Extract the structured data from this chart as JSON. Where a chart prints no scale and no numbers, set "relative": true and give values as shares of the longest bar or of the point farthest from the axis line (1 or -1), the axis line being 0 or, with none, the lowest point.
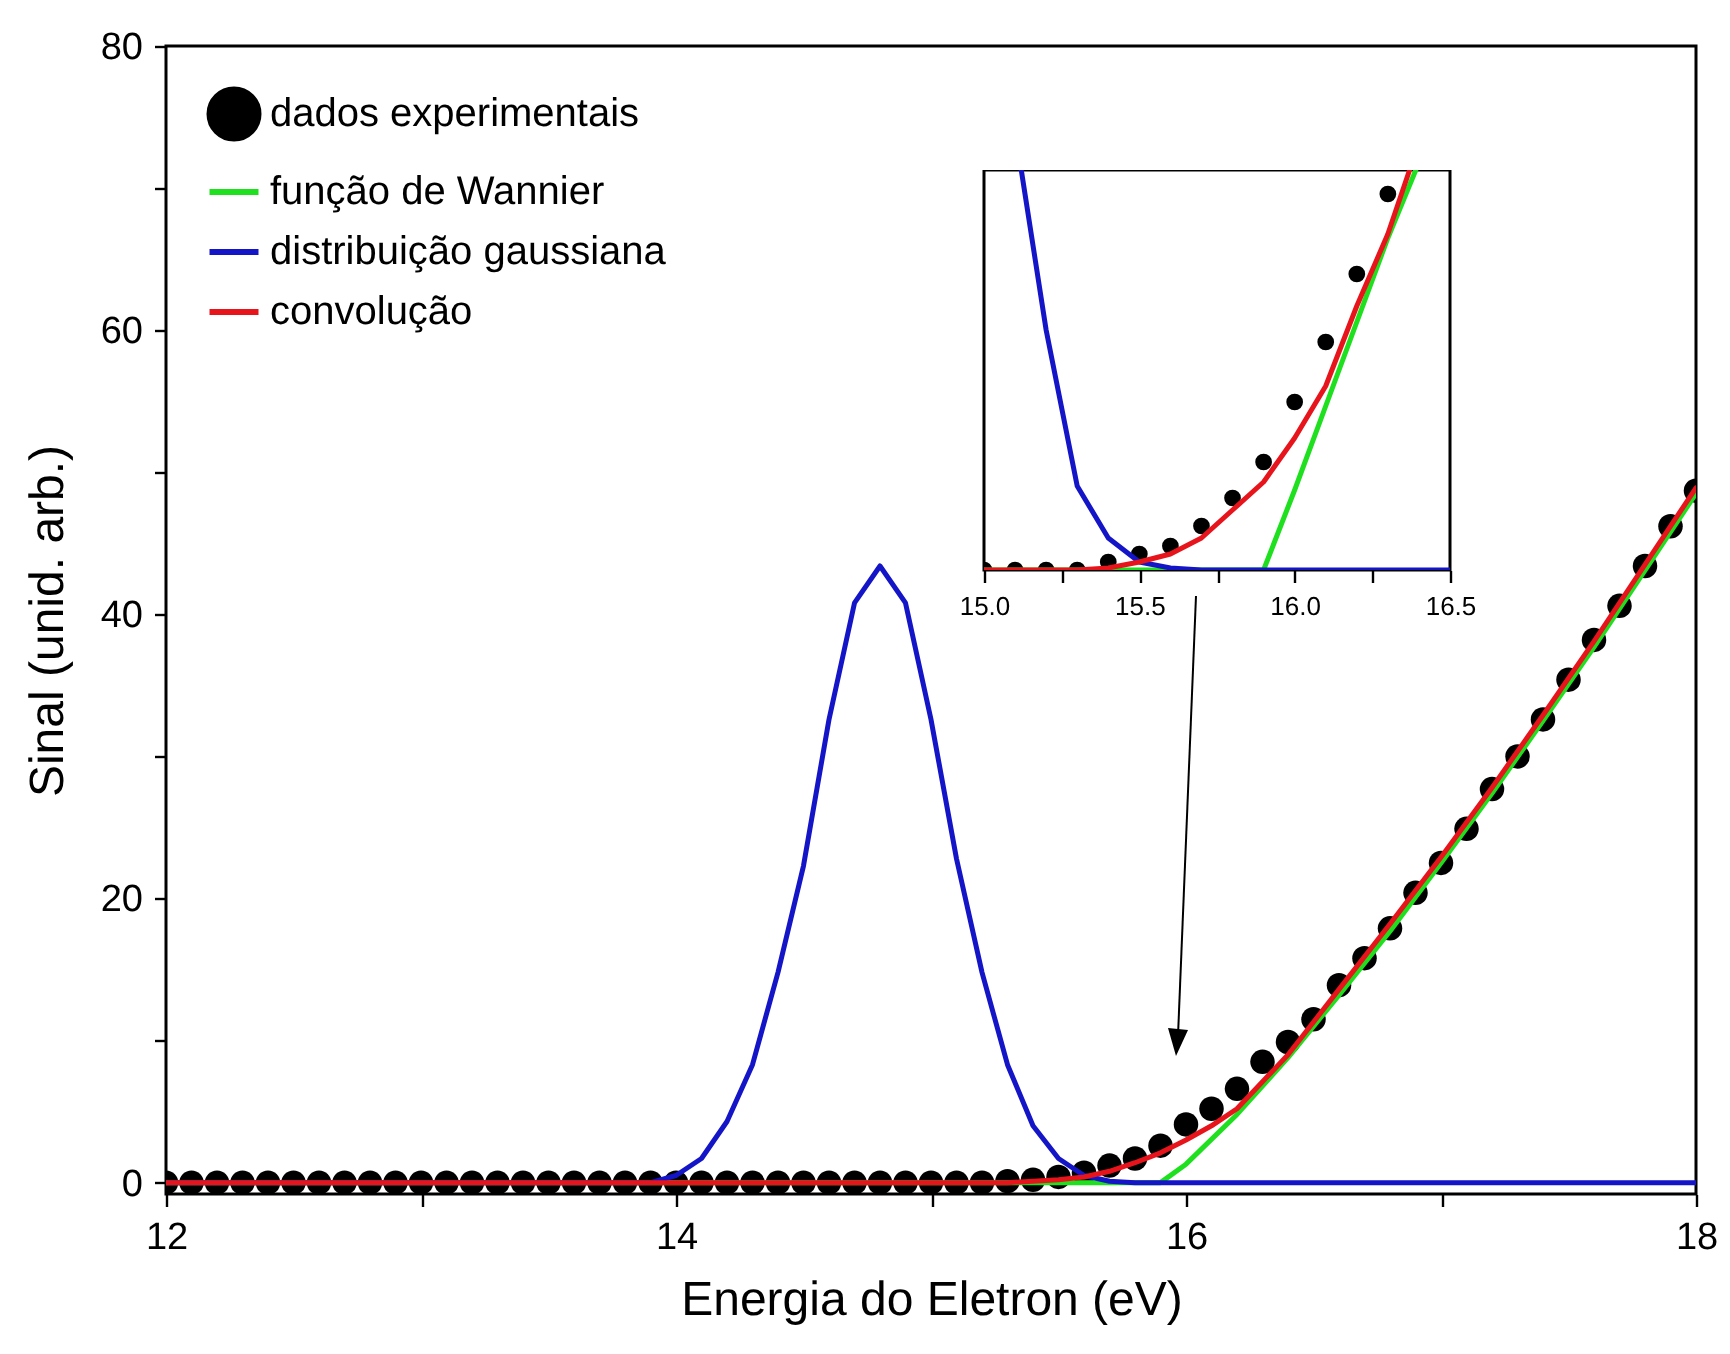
{
  "chart_data": [
    {
      "type": "line",
      "xlabel": "Energia do Eletron (eV)",
      "ylabel": "Sinal (unid. arb.)",
      "xlim": [
        12,
        18
      ],
      "ylim": [
        -0.8,
        80
      ],
      "xticks": [
        12,
        {
          "value": 13,
          "label": null
        },
        14,
        {
          "value": 15,
          "label": null
        },
        16,
        {
          "value": 17,
          "label": null
        },
        18
      ],
      "yticks": [
        0,
        {
          "value": 10,
          "label": null
        },
        20,
        {
          "value": 30,
          "label": null
        },
        40,
        {
          "value": 50,
          "label": null
        },
        60,
        {
          "value": 70,
          "label": null
        },
        80
      ],
      "grid": false,
      "legend": "top left",
      "series": [
        {
          "name": "dados experimentais",
          "type": "scatter",
          "marker": "circle",
          "color": "#000000",
          "x": [
            12.0,
            12.1,
            12.2,
            12.3,
            12.4,
            12.5,
            12.6,
            12.7,
            12.8,
            12.9,
            13.0,
            13.1,
            13.2,
            13.3,
            13.4,
            13.5,
            13.6,
            13.7,
            13.8,
            13.9,
            14.0,
            14.1,
            14.2,
            14.3,
            14.4,
            14.5,
            14.6,
            14.7,
            14.8,
            14.9,
            15.0,
            15.1,
            15.2,
            15.3,
            15.4,
            15.5,
            15.6,
            15.7,
            15.8,
            15.9,
            16.0,
            16.1,
            16.2,
            16.3,
            16.4,
            16.5,
            16.6,
            16.7,
            16.8,
            16.9,
            17.0,
            17.1,
            17.2,
            17.3,
            17.4,
            17.5,
            17.6,
            17.7,
            17.8,
            17.9,
            18.0
          ],
          "values": [
            0,
            0,
            0,
            0,
            0,
            0,
            0,
            0,
            0,
            0,
            0,
            0,
            0,
            0,
            0,
            0,
            0,
            0,
            0,
            0,
            0,
            0,
            0,
            0,
            0,
            0,
            0,
            0,
            0,
            0,
            0,
            0,
            0,
            0.1,
            0.2,
            0.4,
            0.7,
            1.2,
            1.7,
            2.6,
            4.1,
            5.2,
            6.6,
            8.5,
            9.9,
            11.5,
            13.9,
            15.8,
            17.9,
            20.4,
            22.5,
            24.9,
            27.7,
            30.0,
            32.6,
            35.4,
            38.2,
            40.6,
            43.4,
            46.2,
            48.7
          ]
        },
        {
          "name": "função de Wannier",
          "color": "#1fe01f",
          "x": [
            12,
            15.9,
            16.0,
            16.2,
            16.4,
            16.6,
            16.8,
            17.0,
            17.2,
            17.4,
            17.6,
            17.8,
            18.0
          ],
          "values": [
            0,
            0,
            1.3,
            4.8,
            8.8,
            13.2,
            17.7,
            22.5,
            27.4,
            32.5,
            37.7,
            43.1,
            48.5
          ]
        },
        {
          "name": "distribuição gaussiana",
          "color": "#1515c8",
          "x": [
            12,
            13.9,
            14.0,
            14.1,
            14.2,
            14.3,
            14.4,
            14.5,
            14.6,
            14.7,
            14.8,
            14.9,
            15.0,
            15.1,
            15.2,
            15.3,
            15.4,
            15.5,
            15.6,
            15.7,
            15.8,
            18
          ],
          "values": [
            0,
            0,
            0.5,
            1.7,
            4.3,
            8.3,
            14.8,
            22.3,
            32.6,
            40.8,
            43.4,
            40.8,
            32.6,
            22.8,
            14.8,
            8.3,
            4.0,
            1.7,
            0.5,
            0.1,
            0,
            0
          ]
        },
        {
          "name": "convolução",
          "color": "#e8141c",
          "x": [
            12,
            15.3,
            15.5,
            15.6,
            15.7,
            15.8,
            15.9,
            16.0,
            16.1,
            16.2,
            16.4,
            16.6,
            16.8,
            17.0,
            17.2,
            17.4,
            17.6,
            17.8,
            18.0
          ],
          "values": [
            0,
            0,
            0.2,
            0.4,
            0.8,
            1.4,
            2.1,
            3.0,
            4.0,
            5.2,
            9.0,
            13.6,
            18.2,
            22.9,
            27.8,
            32.9,
            38.1,
            43.5,
            48.9
          ]
        }
      ]
    },
    {
      "type": "line",
      "relative": true,
      "tick_labels": "x",
      "xlim": [
        15,
        16.5
      ],
      "xticks": [
        {
          "value": 15,
          "label": "15.0"
        },
        {
          "value": 15.25,
          "label": null
        },
        15.5,
        {
          "value": 15.75,
          "label": null
        },
        {
          "value": 16,
          "label": "16.0"
        },
        {
          "value": 16.25,
          "label": null
        },
        16.5
      ],
      "grid": false,
      "series": [
        {
          "type": "scatter",
          "marker": "circle",
          "color": "#000000",
          "x": [
            15.0,
            15.1,
            15.2,
            15.3,
            15.4,
            15.5,
            15.6,
            15.7,
            15.8,
            15.9,
            16.0,
            16.1,
            16.2,
            16.3
          ],
          "values": [
            0,
            0,
            0,
            0,
            0.02,
            0.04,
            0.06,
            0.11,
            0.18,
            0.27,
            0.42,
            0.57,
            0.74,
            0.94
          ]
        },
        {
          "color": "#1fe01f",
          "x": [
            15,
            15.9,
            16.0,
            16.1,
            16.2,
            16.3,
            16.39
          ],
          "values": [
            0,
            0,
            0.2,
            0.41,
            0.62,
            0.83,
            1
          ]
        },
        {
          "color": "#1515c8",
          "x": [
            15.12,
            15.2,
            15.3,
            15.4,
            15.5,
            15.6,
            15.7,
            16.5
          ],
          "values": [
            1,
            0.6,
            0.21,
            0.08,
            0.02,
            0.005,
            0,
            0
          ]
        },
        {
          "color": "#e8141c",
          "x": [
            15,
            15.3,
            15.4,
            15.5,
            15.6,
            15.7,
            15.8,
            15.9,
            16.0,
            16.1,
            16.2,
            16.3,
            16.37
          ],
          "values": [
            0,
            0,
            0.005,
            0.02,
            0.04,
            0.08,
            0.15,
            0.22,
            0.33,
            0.46,
            0.66,
            0.84,
            1
          ]
        }
      ]
    }
  ]
}
